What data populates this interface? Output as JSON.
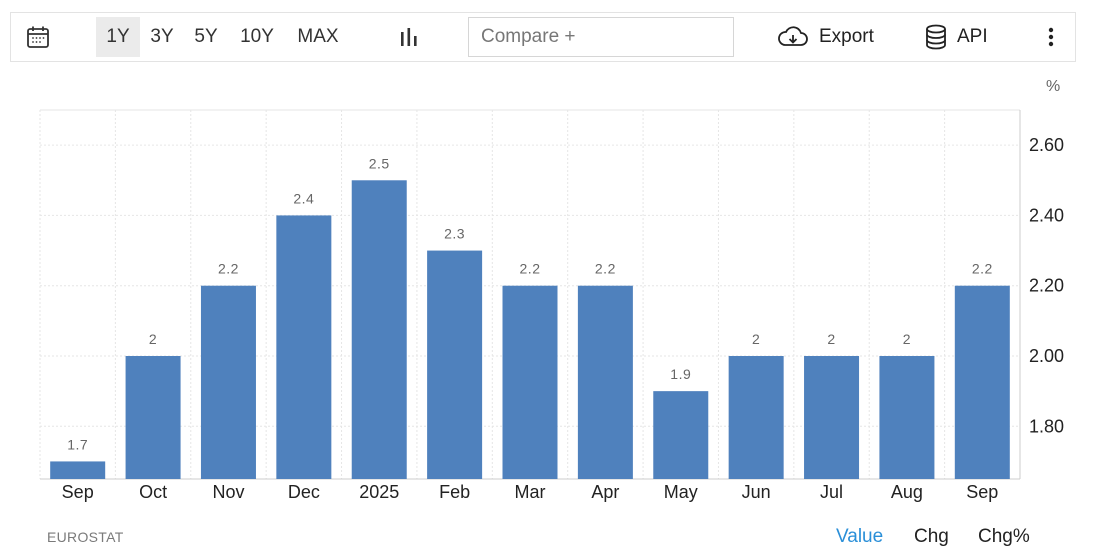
{
  "toolbar": {
    "ranges": [
      "1Y",
      "3Y",
      "5Y",
      "10Y",
      "MAX"
    ],
    "active_range": "1Y",
    "compare_placeholder": "Compare +",
    "export_label": "Export",
    "api_label": "API"
  },
  "footer": {
    "source": "EUROSTAT",
    "tabs": [
      "Value",
      "Chg",
      "Chg%"
    ],
    "active_tab": "Value"
  },
  "colors": {
    "bar": "#4f81bd",
    "active_tab": "#2a8fd8",
    "grid": "#e6e6e6"
  },
  "chart_data": {
    "type": "bar",
    "categories": [
      "Sep",
      "Oct",
      "Nov",
      "Dec",
      "2025",
      "Feb",
      "Mar",
      "Apr",
      "May",
      "Jun",
      "Jul",
      "Aug",
      "Sep"
    ],
    "values": [
      1.7,
      2.0,
      2.2,
      2.4,
      2.5,
      2.3,
      2.2,
      2.2,
      1.9,
      2.0,
      2.0,
      2.0,
      2.2
    ],
    "data_labels": [
      "1.7",
      "2",
      "2.2",
      "2.4",
      "2.5",
      "2.3",
      "2.2",
      "2.2",
      "1.9",
      "2",
      "2",
      "2",
      "2.2"
    ],
    "y_ticks": [
      "1.80",
      "2.00",
      "2.20",
      "2.40",
      "2.60"
    ],
    "y_unit": "%",
    "ylim": [
      1.65,
      2.7
    ],
    "y_axis_position": "right",
    "grid": true
  }
}
